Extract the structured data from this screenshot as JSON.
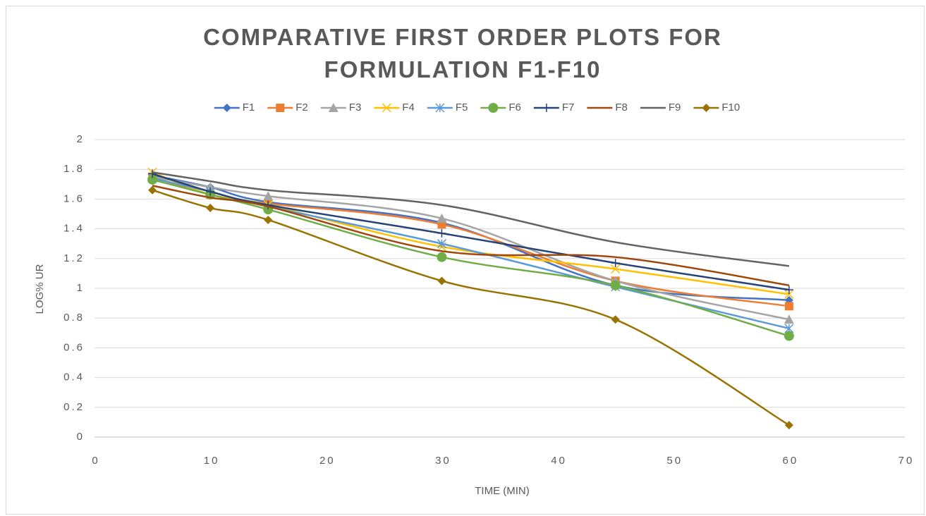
{
  "chart_data": {
    "type": "line",
    "title": "COMPARATIVE FIRST ORDER PLOTS FOR FORMULATION F1-F10",
    "x_label": "TIME (MIN)",
    "y_label": "LOG% UR",
    "x": [
      5,
      10,
      15,
      30,
      45,
      60
    ],
    "xlim": [
      0,
      70
    ],
    "xticks": [
      0,
      10,
      20,
      30,
      40,
      50,
      60,
      70
    ],
    "ylim": [
      0,
      2
    ],
    "yticks": [
      0,
      0.2,
      0.4,
      0.6,
      0.8,
      1,
      1.2,
      1.4,
      1.6,
      1.8,
      2
    ],
    "grid": true,
    "smooth": true,
    "legend": "top",
    "series": [
      {
        "name": "F1",
        "color": "#4472c4",
        "marker": "diamond",
        "values": [
          1.76,
          1.68,
          1.58,
          1.44,
          1.02,
          0.92
        ]
      },
      {
        "name": "F2",
        "color": "#ed7d31",
        "marker": "square",
        "values": [
          1.75,
          1.63,
          1.57,
          1.43,
          1.05,
          0.88
        ]
      },
      {
        "name": "F3",
        "color": "#a5a5a5",
        "marker": "triangle",
        "values": [
          1.75,
          1.68,
          1.62,
          1.47,
          1.05,
          0.79
        ]
      },
      {
        "name": "F4",
        "color": "#ffc000",
        "marker": "x",
        "values": [
          1.78,
          1.63,
          1.56,
          1.28,
          1.13,
          0.96
        ]
      },
      {
        "name": "F5",
        "color": "#5b9bd5",
        "marker": "star",
        "values": [
          1.74,
          1.65,
          1.55,
          1.3,
          1.01,
          0.73
        ]
      },
      {
        "name": "F6",
        "color": "#70ad47",
        "marker": "circle",
        "values": [
          1.73,
          1.63,
          1.53,
          1.21,
          1.02,
          0.68
        ]
      },
      {
        "name": "F7",
        "color": "#264478",
        "marker": "plus",
        "values": [
          1.77,
          1.65,
          1.56,
          1.37,
          1.17,
          0.99
        ]
      },
      {
        "name": "F8",
        "color": "#9e480e",
        "values": [
          1.69,
          1.61,
          1.55,
          1.25,
          1.21,
          1.02
        ]
      },
      {
        "name": "F9",
        "color": "#636363",
        "values": [
          1.78,
          1.72,
          1.66,
          1.56,
          1.31,
          1.15
        ]
      },
      {
        "name": "F10",
        "color": "#997300",
        "marker": "diamond",
        "values": [
          1.66,
          1.54,
          1.46,
          1.05,
          0.79,
          0.08
        ]
      }
    ]
  }
}
